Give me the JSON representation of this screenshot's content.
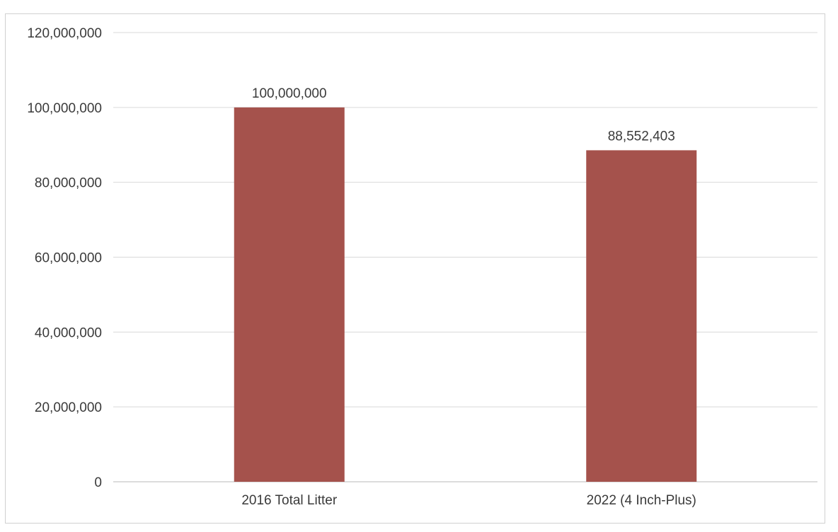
{
  "chart_data": {
    "type": "bar",
    "title": "",
    "xlabel": "",
    "ylabel": "",
    "categories": [
      "2016 Total Litter",
      "2022 (4 Inch-Plus)"
    ],
    "values": [
      100000000,
      88552403
    ],
    "data_labels": [
      "100,000,000",
      "88,552,403"
    ],
    "ylim": [
      0,
      120000000
    ],
    "y_ticks": [
      0,
      20000000,
      40000000,
      60000000,
      80000000,
      100000000,
      120000000
    ],
    "y_tick_labels": [
      "0",
      "20,000,000",
      "40,000,000",
      "60,000,000",
      "80,000,000",
      "100,000,000",
      "120,000,000"
    ],
    "grid": true,
    "legend": "none",
    "bar_color": "#a5524c"
  }
}
